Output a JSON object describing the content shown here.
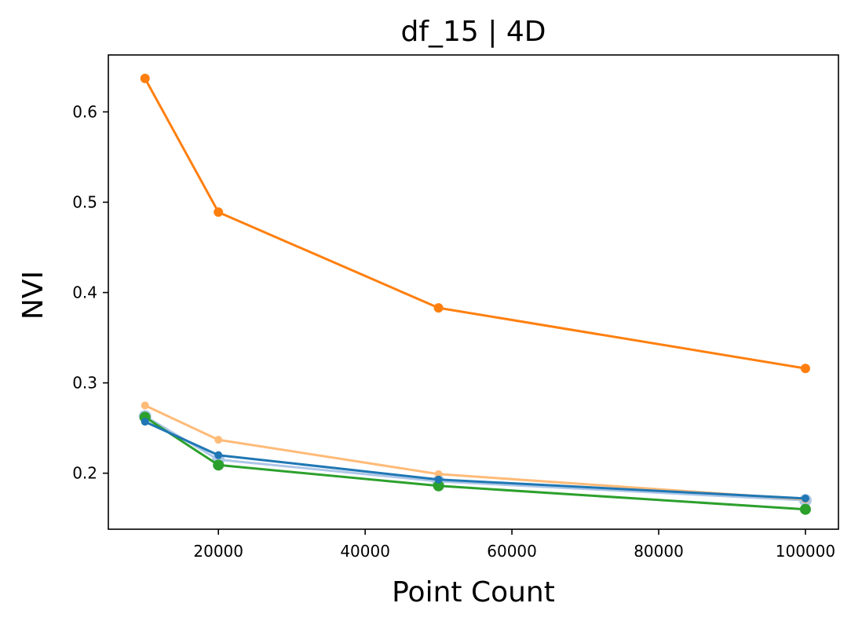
{
  "chart_data": {
    "type": "line",
    "title": "df_15 | 4D",
    "xlabel": "Point Count",
    "ylabel": "NVI",
    "xlim": [
      5000,
      104500
    ],
    "ylim": [
      0.138,
      0.663
    ],
    "x_ticks": [
      20000,
      40000,
      60000,
      80000,
      100000
    ],
    "y_ticks": [
      0.2,
      0.3,
      0.4,
      0.5,
      0.6
    ],
    "x_tick_labels": [
      "20000",
      "40000",
      "60000",
      "80000",
      "100000"
    ],
    "y_tick_labels": [
      "0.2",
      "0.3",
      "0.4",
      "0.5",
      "0.6"
    ],
    "grid": false,
    "legend": "none",
    "x": [
      10000,
      20000,
      50000,
      100000
    ],
    "series": [
      {
        "color": "#aec7e8",
        "marker_size": 8,
        "values": [
          0.263,
          0.215,
          0.191,
          0.17
        ]
      },
      {
        "color": "#2ca02c",
        "marker_size": 7,
        "values": [
          0.262,
          0.209,
          0.186,
          0.16
        ]
      },
      {
        "color": "#ffbb78",
        "marker_size": 5,
        "values": [
          0.275,
          0.237,
          0.199,
          0.171
        ]
      },
      {
        "color": "#1f77b4",
        "marker_size": 5,
        "values": [
          0.257,
          0.22,
          0.193,
          0.172
        ]
      },
      {
        "color": "#ff7f0e",
        "marker_size": 6,
        "values": [
          0.637,
          0.489,
          0.383,
          0.316
        ]
      }
    ]
  }
}
